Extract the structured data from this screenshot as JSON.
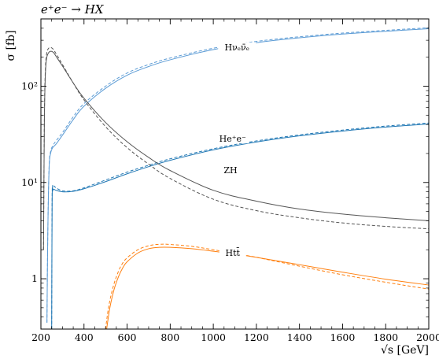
{
  "chart_data": {
    "type": "line",
    "title": "e⁺e⁻ → HX",
    "xlabel": "√s [GeV]",
    "ylabel": "σ [fb]",
    "xlim": [
      200,
      2000
    ],
    "ylim": [
      0.3,
      500
    ],
    "yscale": "log",
    "xticks": [
      200,
      400,
      600,
      800,
      1000,
      1200,
      1400,
      1600,
      1800,
      2000
    ],
    "yticks": [
      {
        "value": 1,
        "label": "1"
      },
      {
        "value": 10,
        "label": "10¹"
      },
      {
        "value": 100,
        "label": "10²"
      }
    ],
    "grid": false,
    "series": [
      {
        "name": "Hνₑν̄ₑ",
        "line": "solid",
        "color": "#5b9bd5",
        "x": [
          228,
          232,
          238,
          245,
          255,
          270,
          300,
          350,
          400,
          500,
          600,
          700,
          800,
          1000,
          1200,
          1400,
          1600,
          1800,
          2000
        ],
        "y": [
          0.35,
          3,
          14,
          20,
          23,
          25,
          31,
          45,
          62,
          95,
          130,
          160,
          188,
          240,
          283,
          318,
          348,
          372,
          395
        ]
      },
      {
        "name": "Hνₑν̄ₑ",
        "line": "dashed",
        "color": "#5b9bd5",
        "x": [
          228,
          232,
          238,
          245,
          255,
          270,
          300,
          350,
          400,
          500,
          600,
          700,
          800,
          1000,
          1200,
          1400,
          1600,
          1800,
          2000
        ],
        "y": [
          0.35,
          3,
          14.5,
          21,
          24,
          27,
          33,
          48,
          66,
          100,
          137,
          168,
          196,
          248,
          292,
          326,
          356,
          380,
          405
        ]
      },
      {
        "name": "He⁺e⁻",
        "line": "solid",
        "color": "#1f77b4",
        "x": [
          250,
          252,
          255,
          260,
          270,
          300,
          350,
          400,
          500,
          600,
          700,
          800,
          1000,
          1200,
          1400,
          1600,
          1800,
          2000
        ],
        "y": [
          0.3,
          6,
          8.2,
          8.5,
          8.3,
          8.0,
          8.1,
          8.6,
          10.2,
          12.3,
          14.6,
          17,
          21.8,
          26.3,
          30.5,
          34.2,
          37.6,
          40.5
        ]
      },
      {
        "name": "He⁺e⁻",
        "line": "dashed",
        "color": "#1f77b4",
        "x": [
          250,
          252,
          255,
          260,
          270,
          300,
          350,
          400,
          500,
          600,
          700,
          800,
          1000,
          1200,
          1400,
          1600,
          1800,
          2000
        ],
        "y": [
          0.3,
          6.5,
          8.8,
          9.2,
          8.8,
          8.2,
          8.2,
          8.8,
          10.6,
          12.8,
          15.1,
          17.6,
          22.4,
          27,
          31.2,
          35,
          38.5,
          41.5
        ]
      },
      {
        "name": "ZH",
        "line": "solid",
        "color": "#555555",
        "x": [
          212,
          216,
          220,
          225,
          232,
          240,
          250,
          260,
          270,
          300,
          350,
          400,
          500,
          600,
          700,
          800,
          1000,
          1200,
          1400,
          1600,
          1800,
          2000
        ],
        "y": [
          2,
          40,
          120,
          185,
          215,
          228,
          230,
          222,
          205,
          162,
          108,
          75,
          42,
          26.5,
          18.2,
          13.3,
          8.3,
          6.4,
          5.3,
          4.7,
          4.3,
          4.0
        ]
      },
      {
        "name": "ZH",
        "line": "dashed",
        "color": "#555555",
        "x": [
          212,
          216,
          220,
          225,
          232,
          240,
          250,
          260,
          270,
          300,
          350,
          400,
          500,
          600,
          700,
          800,
          1000,
          1200,
          1400,
          1600,
          1800,
          2000
        ],
        "y": [
          2,
          45,
          135,
          205,
          240,
          252,
          250,
          238,
          218,
          168,
          108,
          72,
          38,
          23,
          15.5,
          11,
          6.7,
          5.1,
          4.3,
          3.8,
          3.5,
          3.3
        ]
      },
      {
        "name": "Htt̄",
        "line": "solid",
        "color": "#ff7f0e",
        "x": [
          505,
          520,
          540,
          560,
          580,
          600,
          650,
          700,
          750,
          800,
          900,
          1000,
          1100,
          1200,
          1400,
          1600,
          1800,
          2000
        ],
        "y": [
          0.3,
          0.5,
          0.78,
          1.05,
          1.3,
          1.5,
          1.85,
          2.05,
          2.12,
          2.12,
          2.05,
          1.93,
          1.8,
          1.67,
          1.4,
          1.17,
          0.99,
          0.86
        ]
      },
      {
        "name": "Htt̄",
        "line": "dashed",
        "color": "#ff7f0e",
        "x": [
          500,
          515,
          535,
          555,
          575,
          600,
          650,
          700,
          750,
          800,
          900,
          1000,
          1100,
          1200,
          1400,
          1600,
          1800,
          2000
        ],
        "y": [
          0.3,
          0.52,
          0.82,
          1.12,
          1.4,
          1.65,
          2.0,
          2.2,
          2.28,
          2.27,
          2.17,
          2.0,
          1.83,
          1.67,
          1.35,
          1.1,
          0.92,
          0.78
        ]
      }
    ],
    "labels": [
      {
        "text": "Hνₑν̄ₑ",
        "x": 1110,
        "y": 255
      },
      {
        "text": "He⁺e⁻",
        "x": 1090,
        "y": 28.5
      },
      {
        "text": "ZH",
        "x": 1080,
        "y": 13.5
      },
      {
        "text": "Htt̄",
        "x": 1090,
        "y": 1.86
      }
    ]
  }
}
